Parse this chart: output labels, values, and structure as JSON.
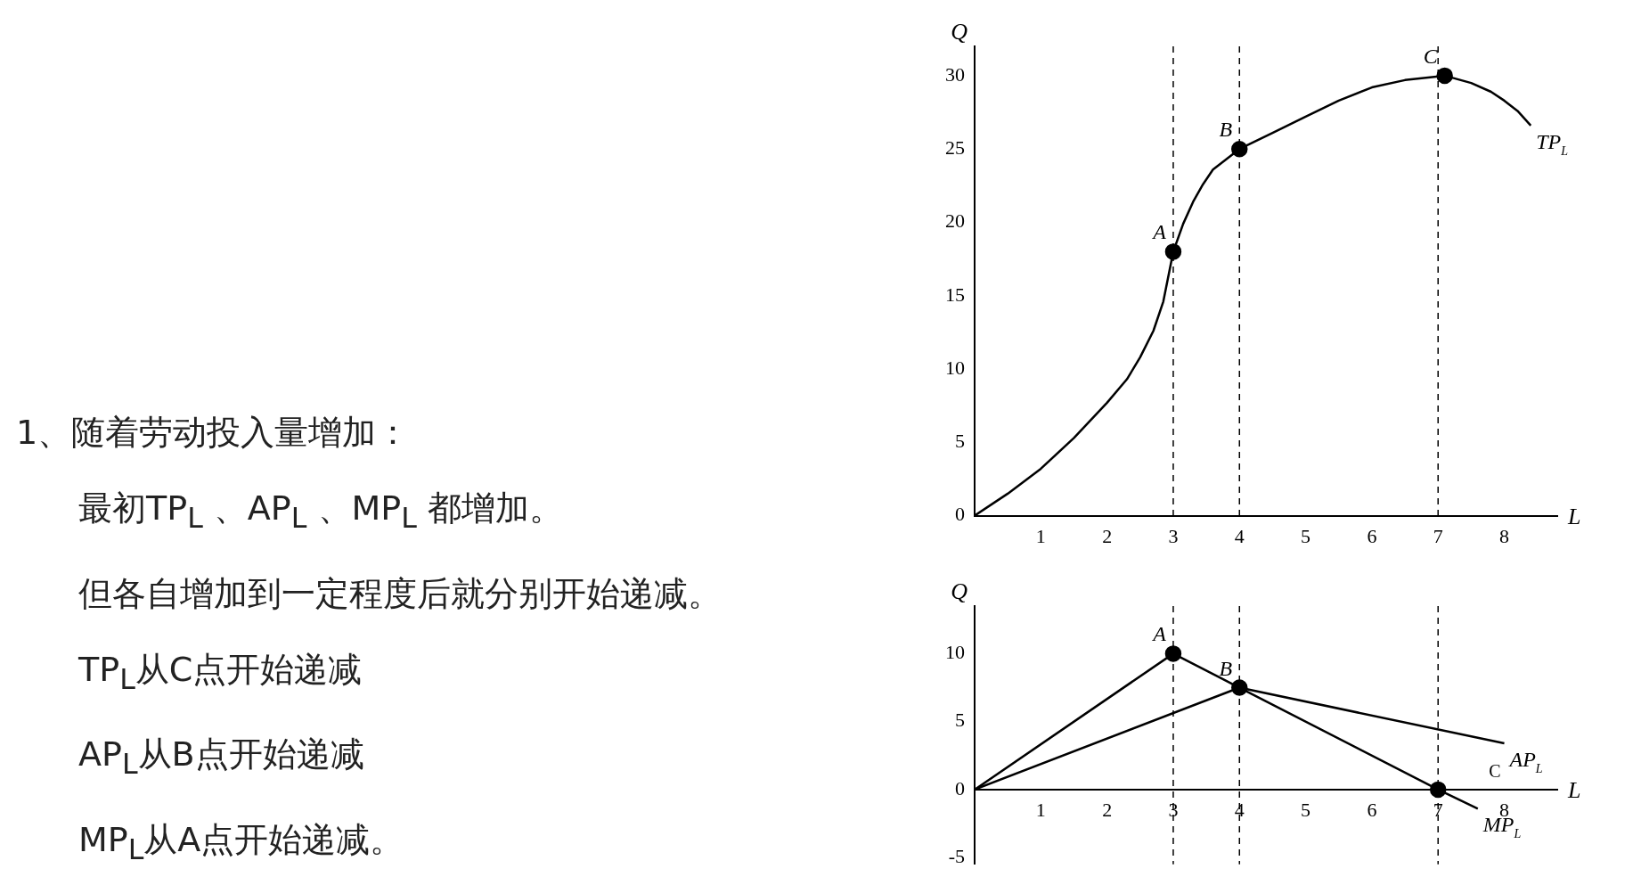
{
  "chart_data": [
    {
      "type": "other",
      "annotations": [
        "1、随着劳动投入量增加：",
        "最初TP$_{L}$ 、AP$_{L}$ 、MP$_{L}$ 都增加。",
        "但各自增加到一定程度后就分别开始递减。",
        "TP$_{L}$从C点开始递减",
        "AP$_{L}$从B点开始递减",
        "MP$_{L}$从A点开始递减。"
      ]
    },
    {
      "type": "line",
      "xlabel": "L",
      "ylabel": "Q",
      "xlim": [
        0,
        8.8
      ],
      "ylim": [
        0,
        32
      ],
      "xticks": [
        1,
        2,
        3,
        4,
        5,
        6,
        7,
        8
      ],
      "yticks": [
        0,
        5,
        10,
        15,
        20,
        25,
        30
      ],
      "grid": false,
      "legend": false,
      "series": [
        {
          "name": "TP$_{L}$",
          "color": "#000000",
          "marker": "none",
          "x": [
            0,
            0.5,
            1,
            1.5,
            2,
            2.3,
            2.5,
            2.7,
            2.85,
            3,
            3.15,
            3.3,
            3.45,
            3.6,
            3.8,
            4,
            4.5,
            5,
            5.5,
            6,
            6.5,
            7.1,
            7.5,
            7.8,
            8,
            8.2,
            8.4
          ],
          "values": [
            0,
            1.5,
            3.2,
            5.3,
            7.7,
            9.3,
            10.8,
            12.6,
            14.6,
            18,
            19.9,
            21.4,
            22.6,
            23.6,
            24.3,
            25,
            26.1,
            27.2,
            28.3,
            29.2,
            29.7,
            30,
            29.5,
            28.9,
            28.3,
            27.6,
            26.6
          ]
        },
        {
          "type": "scatter",
          "color": "#000000",
          "marker": "circle",
          "x": [
            3,
            4,
            7.1
          ],
          "values": [
            18,
            25,
            30
          ]
        }
      ],
      "ref_lines": [
        {
          "axis": "x",
          "value": 3,
          "color": "#000000",
          "line_style": "dashed"
        },
        {
          "axis": "x",
          "value": 4,
          "color": "#000000",
          "line_style": "dashed"
        },
        {
          "axis": "x",
          "value": 7,
          "color": "#000000",
          "line_style": "dashed"
        }
      ],
      "annotations": [
        {
          "text": "A",
          "x": 3,
          "y": 18
        },
        {
          "text": "B",
          "x": 4,
          "y": 25
        },
        {
          "text": "C",
          "x": 7.1,
          "y": 30
        }
      ]
    },
    {
      "type": "line",
      "xlabel": "L",
      "ylabel": "Q",
      "xlim": [
        0,
        8.8
      ],
      "ylim": [
        -5.5,
        13.5
      ],
      "xticks": [
        1,
        2,
        3,
        4,
        5,
        6,
        7,
        8
      ],
      "yticks": [
        -5,
        0,
        5,
        10
      ],
      "grid": false,
      "legend": false,
      "series": [
        {
          "name": "MP$_{L}$",
          "color": "#000000",
          "marker": "none",
          "x": [
            0,
            3,
            4,
            7,
            7.6
          ],
          "values": [
            0,
            10,
            7.5,
            0,
            -1.4
          ]
        },
        {
          "name": "AP$_{L}$",
          "color": "#000000",
          "marker": "none",
          "x": [
            0,
            4,
            8
          ],
          "values": [
            0,
            7.5,
            3.4
          ]
        },
        {
          "type": "scatter",
          "color": "#000000",
          "marker": "circle",
          "x": [
            3,
            4,
            7
          ],
          "values": [
            10,
            7.5,
            0
          ]
        }
      ],
      "ref_lines": [
        {
          "axis": "x",
          "value": 3,
          "color": "#000000",
          "line_style": "dashed"
        },
        {
          "axis": "x",
          "value": 4,
          "color": "#000000",
          "line_style": "dashed"
        },
        {
          "axis": "x",
          "value": 7,
          "color": "#000000",
          "line_style": "dashed"
        }
      ],
      "annotations": [
        {
          "text": "A",
          "x": 3,
          "y": 10
        },
        {
          "text": "B",
          "x": 4,
          "y": 7.5
        },
        "C"
      ]
    }
  ]
}
